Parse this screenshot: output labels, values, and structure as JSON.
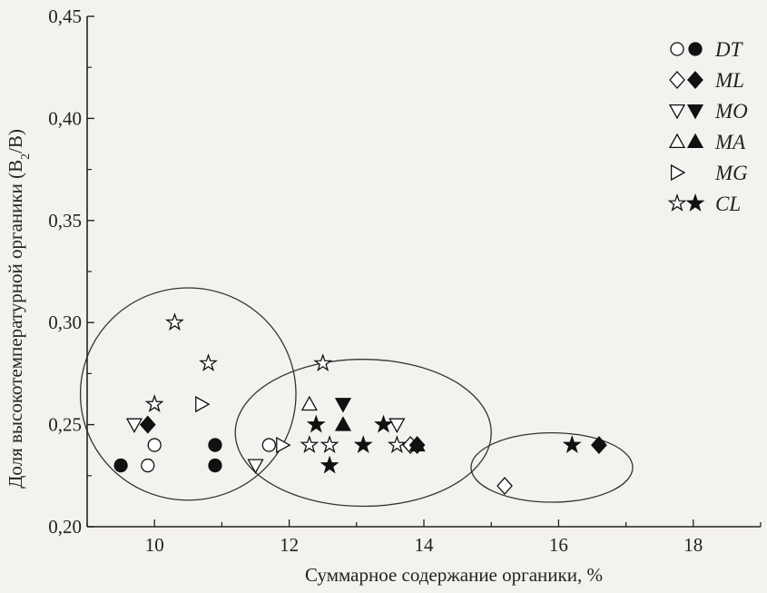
{
  "chart_data": {
    "type": "scatter",
    "xlabel": "Суммарное содержание органики, %",
    "ylabel_main": "Доля высокотемпературной органики (B",
    "ylabel_sub": "2",
    "ylabel_end": "/B)",
    "xlim": [
      9.0,
      19.0
    ],
    "ylim": [
      0.2,
      0.45
    ],
    "x_ticks": [
      10,
      12,
      14,
      16,
      18
    ],
    "x_tick_labels": [
      "10",
      "12",
      "14",
      "16",
      "18"
    ],
    "y_ticks": [
      0.2,
      0.25,
      0.3,
      0.35,
      0.4,
      0.45
    ],
    "y_tick_labels": [
      "0,20",
      "0,25",
      "0,30",
      "0,35",
      "0,40",
      "0,45"
    ],
    "legend_position": "top-right",
    "series": [
      {
        "name": "DT",
        "marker": "circle",
        "open": [
          [
            10.0,
            0.24
          ],
          [
            9.9,
            0.23
          ],
          [
            11.7,
            0.24
          ]
        ],
        "filled": [
          [
            9.5,
            0.23
          ],
          [
            10.9,
            0.24
          ],
          [
            10.9,
            0.23
          ]
        ]
      },
      {
        "name": "ML",
        "marker": "diamond",
        "open": [
          [
            13.8,
            0.24
          ],
          [
            15.2,
            0.22
          ]
        ],
        "filled": [
          [
            9.9,
            0.25
          ],
          [
            13.9,
            0.24
          ],
          [
            16.6,
            0.24
          ]
        ]
      },
      {
        "name": "MO",
        "marker": "triangle-down",
        "open": [
          [
            9.7,
            0.25
          ],
          [
            11.5,
            0.23
          ],
          [
            13.6,
            0.25
          ]
        ],
        "filled": [
          [
            12.8,
            0.26
          ]
        ]
      },
      {
        "name": "MA",
        "marker": "triangle-up",
        "open": [
          [
            12.3,
            0.26
          ]
        ],
        "filled": [
          [
            12.8,
            0.25
          ],
          [
            13.9,
            0.24
          ]
        ]
      },
      {
        "name": "MG",
        "marker": "triangle-right",
        "open": [
          [
            10.7,
            0.26
          ],
          [
            11.9,
            0.24
          ]
        ],
        "filled": []
      },
      {
        "name": "CL",
        "marker": "star",
        "open": [
          [
            10.3,
            0.3
          ],
          [
            10.8,
            0.28
          ],
          [
            10.0,
            0.26
          ],
          [
            12.5,
            0.28
          ],
          [
            12.3,
            0.24
          ],
          [
            12.6,
            0.24
          ],
          [
            13.6,
            0.24
          ]
        ],
        "filled": [
          [
            12.4,
            0.25
          ],
          [
            13.4,
            0.25
          ],
          [
            12.6,
            0.23
          ],
          [
            13.1,
            0.24
          ],
          [
            16.2,
            0.24
          ]
        ]
      }
    ],
    "clusters": [
      {
        "cx": 10.5,
        "cy": 0.265,
        "rx": 1.6,
        "ry": 0.052
      },
      {
        "cx": 13.1,
        "cy": 0.246,
        "rx": 1.9,
        "ry": 0.036
      },
      {
        "cx": 15.9,
        "cy": 0.229,
        "rx": 1.2,
        "ry": 0.017
      }
    ]
  }
}
